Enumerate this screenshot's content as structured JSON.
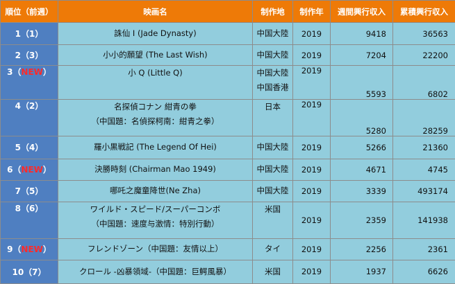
{
  "headers": {
    "rank": "順位（前週）",
    "title": "映画名",
    "country": "制作地",
    "year": "制作年",
    "weekly": "週間興行収入",
    "total": "累積興行収入"
  },
  "rows": [
    {
      "rank": "1（1）",
      "rank_num": "",
      "new_tag": "",
      "rank_close": "",
      "title1": "誅仙 I (Jade Dynasty)",
      "title2": "",
      "country1": "中国大陸",
      "country2": "",
      "year": "2019",
      "weekly": "9418",
      "total": "36563"
    },
    {
      "rank": "2（3）",
      "rank_num": "",
      "new_tag": "",
      "rank_close": "",
      "title1": "小小的願望 (The Last Wish)",
      "title2": "",
      "country1": "中国大陸",
      "country2": "",
      "year": "2019",
      "weekly": "7204",
      "total": "22200"
    },
    {
      "rank": "",
      "rank_num": "3（",
      "new_tag": "NEW",
      "rank_close": "）",
      "title1": "小 Q (Little Q)",
      "title2": "",
      "country1": "中国大陸",
      "country2": "中国香港",
      "year": "2019",
      "weekly": "5593",
      "total": "6802"
    },
    {
      "rank": "4（2）",
      "rank_num": "",
      "new_tag": "",
      "rank_close": "",
      "title1": "名探偵コナン 紺青の拳",
      "title2": "（中国題：名偵探柯南：紺青之拳）",
      "country1": "日本",
      "country2": "",
      "year": "2019",
      "weekly": "5280",
      "total": "28259"
    },
    {
      "rank": "5（4）",
      "rank_num": "",
      "new_tag": "",
      "rank_close": "",
      "title1": "羅小黒戦記 (The Legend Of Hei)",
      "title2": "",
      "country1": "中国大陸",
      "country2": "",
      "year": "2019",
      "weekly": "5266",
      "total": "21360"
    },
    {
      "rank": "",
      "rank_num": "6（",
      "new_tag": "NEW",
      "rank_close": "）",
      "title1": "決勝時刻 (Chairman Mao 1949)",
      "title2": "",
      "country1": "中国大陸",
      "country2": "",
      "year": "2019",
      "weekly": "4671",
      "total": "4745"
    },
    {
      "rank": "7（5）",
      "rank_num": "",
      "new_tag": "",
      "rank_close": "",
      "title1": "哪吒之魔童降世(Ne Zha)",
      "title2": "",
      "country1": "中国大陸",
      "country2": "",
      "year": "2019",
      "weekly": "3339",
      "total": "493174"
    },
    {
      "rank": "8（6）",
      "rank_num": "",
      "new_tag": "",
      "rank_close": "",
      "title1": "ワイルド・スピード/スーパーコンボ",
      "title2": "（中国題：速度与激情：特別行動）",
      "country1": "米国",
      "country2": "",
      "year": "2019",
      "weekly": "2359",
      "total": "141938"
    },
    {
      "rank": "",
      "rank_num": "9（",
      "new_tag": "NEW",
      "rank_close": "）",
      "title1": "フレンドゾーン（中国題：友情以上）",
      "title2": "",
      "country1": "タイ",
      "country2": "",
      "year": "2019",
      "weekly": "2256",
      "total": "2361"
    },
    {
      "rank": "10（7）",
      "rank_num": "",
      "new_tag": "",
      "rank_close": "",
      "title1": "クロール -凶暴領域-（中国題：巨鰐風暴）",
      "title2": "",
      "country1": "米国",
      "country2": "",
      "year": "2019",
      "weekly": "1937",
      "total": "6626"
    }
  ]
}
